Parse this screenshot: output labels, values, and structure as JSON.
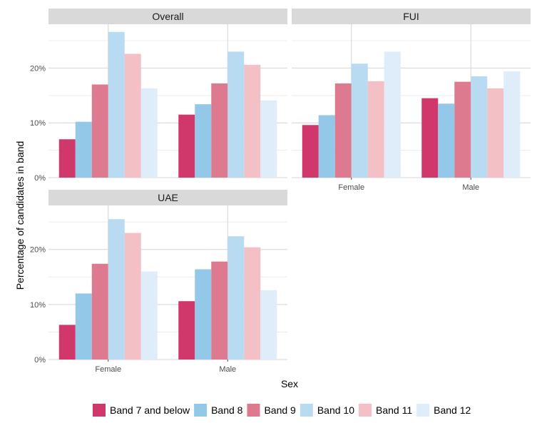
{
  "chart_data": {
    "type": "bar",
    "ylabel": "Percentage of candidates in band",
    "xlabel": "Sex",
    "ylim": [
      0,
      28
    ],
    "yticks": [
      0,
      10,
      20
    ],
    "ytick_labels": [
      "0%",
      "10%",
      "20%"
    ],
    "categories": [
      "Female",
      "Male"
    ],
    "legend_position": "bottom",
    "series_names": [
      "Band 7 and below",
      "Band 8",
      "Band 9",
      "Band 10",
      "Band 11",
      "Band 12"
    ],
    "colors": [
      "#d0386b",
      "#94c8e8",
      "#de7a8f",
      "#b8dbf2",
      "#f2c0c5",
      "#deedf9"
    ],
    "panels": [
      {
        "title": "Overall",
        "values": {
          "Female": [
            7.0,
            10.2,
            17.0,
            26.6,
            22.6,
            16.3
          ],
          "Male": [
            11.5,
            13.4,
            17.2,
            23.0,
            20.6,
            14.1
          ]
        }
      },
      {
        "title": "FUI",
        "values": {
          "Female": [
            9.6,
            11.4,
            17.2,
            20.8,
            17.6,
            23.0
          ],
          "Male": [
            14.5,
            13.5,
            17.5,
            18.5,
            16.3,
            19.4
          ]
        }
      },
      {
        "title": "UAE",
        "values": {
          "Female": [
            6.3,
            12.0,
            17.4,
            25.5,
            23.0,
            16.0
          ],
          "Male": [
            10.6,
            16.4,
            17.8,
            22.4,
            20.4,
            12.6
          ]
        }
      }
    ]
  }
}
